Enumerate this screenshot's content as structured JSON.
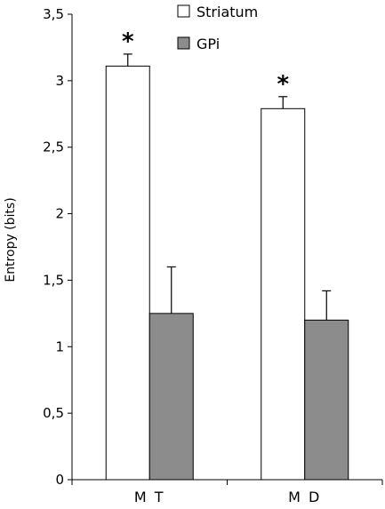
{
  "chart_data": {
    "type": "bar",
    "categories": [
      "M T",
      "M D"
    ],
    "series": [
      {
        "name": "Striatum",
        "values": [
          3.11,
          2.79
        ],
        "errors": [
          0.09,
          0.09
        ],
        "color": "#ffffff",
        "annotations": [
          "*",
          "*"
        ]
      },
      {
        "name": "GPi",
        "values": [
          1.25,
          1.2
        ],
        "errors": [
          0.35,
          0.22
        ],
        "color": "#8c8c8c",
        "annotations": [
          "",
          ""
        ]
      }
    ],
    "ylabel": "Entropy (bits)",
    "ylim": [
      0,
      3.5
    ],
    "yticks": [
      "0",
      "0,5",
      "1",
      "1,5",
      "2",
      "2,5",
      "3",
      "3,5"
    ],
    "legend_position": "top-right",
    "grid": false
  }
}
